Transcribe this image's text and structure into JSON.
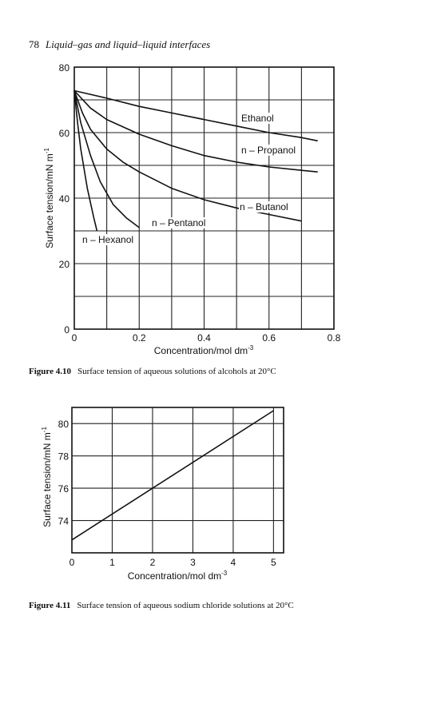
{
  "header": {
    "page_number": "78",
    "title": "Liquid–gas and liquid–liquid interfaces"
  },
  "figure1": {
    "caption_label": "Figure 4.10",
    "caption_text": "Surface tension of aqueous solutions of alcohols at 20°C"
  },
  "figure2": {
    "caption_label": "Figure 4.11",
    "caption_text": "Surface tension of aqueous sodium chloride solutions at 20°C"
  },
  "chart_data": [
    {
      "type": "line",
      "title": "",
      "xlabel": "Concentration/mol dm-3",
      "ylabel": "Surface tension/mN m-1",
      "xlim": [
        0,
        0.8
      ],
      "ylim": [
        0,
        80
      ],
      "xticks": [
        "0",
        "0.2",
        "0.4",
        "0.6",
        "0.8"
      ],
      "yticks": [
        "0",
        "20",
        "40",
        "60",
        "80"
      ],
      "grid": true,
      "series": [
        {
          "name": "Ethanol",
          "x": [
            0,
            0.1,
            0.2,
            0.3,
            0.4,
            0.5,
            0.6,
            0.7,
            0.75
          ],
          "y": [
            72.8,
            70.5,
            68,
            66,
            64,
            62,
            60,
            58.5,
            57.5
          ]
        },
        {
          "name": "n – Propanol",
          "x": [
            0,
            0.05,
            0.1,
            0.2,
            0.3,
            0.4,
            0.5,
            0.6,
            0.7,
            0.75
          ],
          "y": [
            72.8,
            67.5,
            64,
            59.5,
            56,
            53,
            51,
            49.5,
            48.5,
            48
          ]
        },
        {
          "name": "n – Butanol",
          "x": [
            0,
            0.025,
            0.05,
            0.1,
            0.15,
            0.2,
            0.3,
            0.4,
            0.5,
            0.6,
            0.7
          ],
          "y": [
            72.8,
            66,
            61,
            55,
            51,
            48,
            43,
            39.5,
            37,
            35,
            33
          ]
        },
        {
          "name": "n – Pentanol",
          "x": [
            0,
            0.02,
            0.05,
            0.08,
            0.12,
            0.16,
            0.2
          ],
          "y": [
            72.8,
            63,
            53,
            45,
            38,
            34,
            31
          ]
        },
        {
          "name": "n – Hexanol",
          "x": [
            0,
            0.01,
            0.02,
            0.04,
            0.06,
            0.07
          ],
          "y": [
            72.8,
            63,
            55,
            43,
            34,
            30
          ]
        }
      ]
    },
    {
      "type": "line",
      "title": "",
      "xlabel": "Concentration/mol dm-3",
      "ylabel": "Surface tension/mN m-1",
      "xlim": [
        0,
        5.25
      ],
      "ylim": [
        72,
        81
      ],
      "xticks": [
        "0",
        "1",
        "2",
        "3",
        "4",
        "5"
      ],
      "yticks": [
        "74",
        "76",
        "78",
        "80"
      ],
      "grid": true,
      "series": [
        {
          "name": "",
          "x": [
            0,
            5
          ],
          "y": [
            72.8,
            80.8
          ]
        }
      ]
    }
  ]
}
